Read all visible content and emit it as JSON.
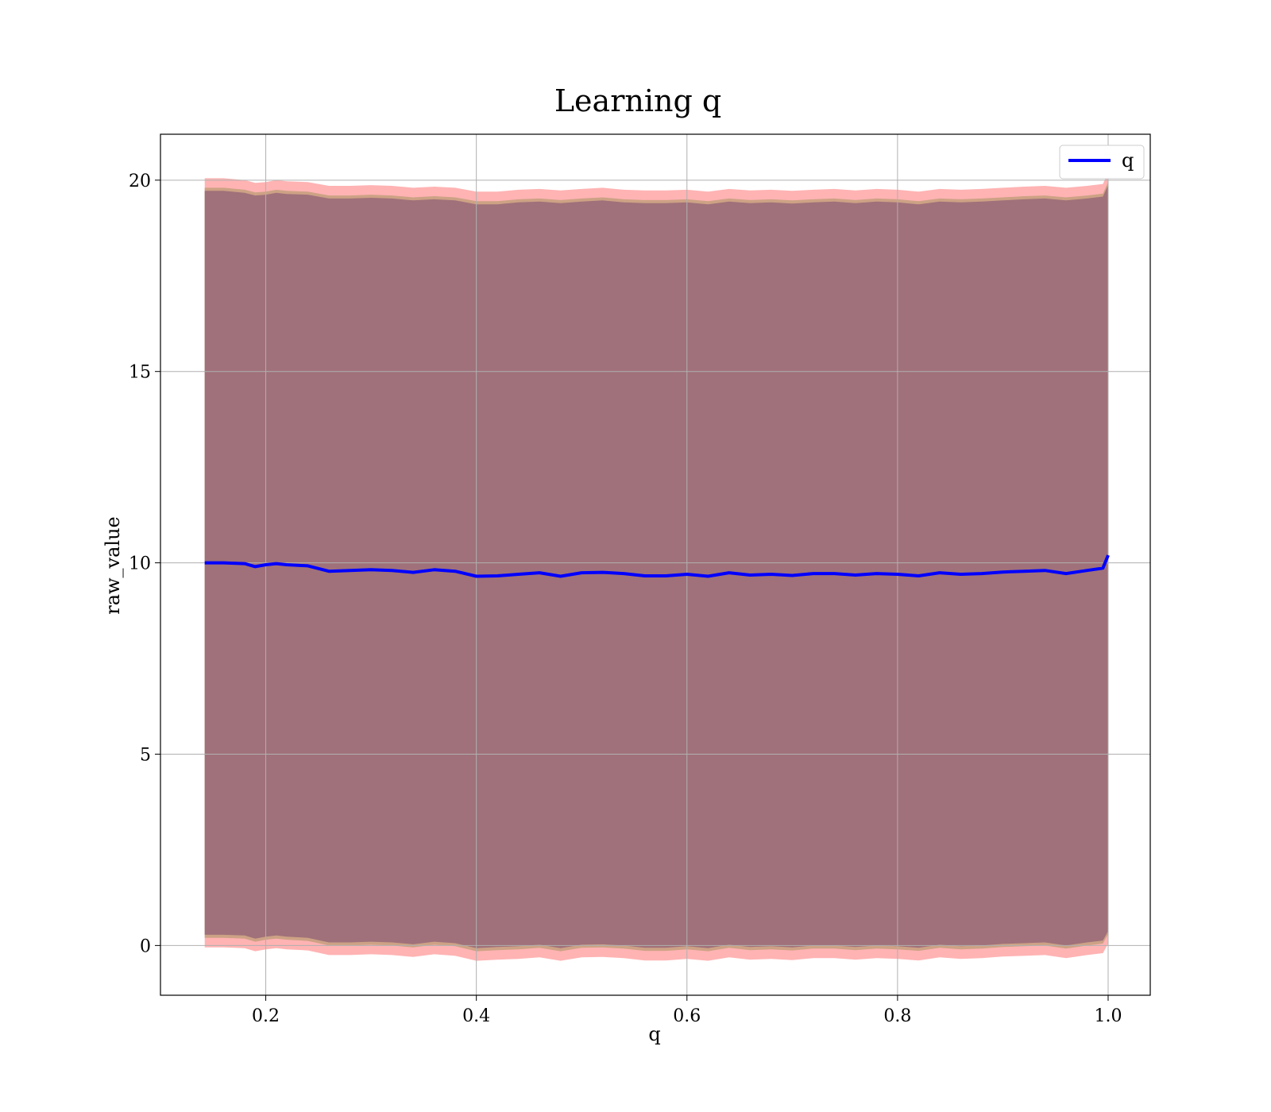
{
  "chart_data": {
    "type": "line",
    "title": "Learning q",
    "xlabel": "q",
    "ylabel": "raw_value",
    "xlim": [
      0.1,
      1.04
    ],
    "ylim": [
      -1.3,
      21.2
    ],
    "xticks": [
      0.2,
      0.4,
      0.6,
      0.8,
      1.0
    ],
    "xtick_labels": [
      "0.2",
      "0.4",
      "0.6",
      "0.8",
      "1.0"
    ],
    "yticks": [
      0,
      5,
      10,
      15,
      20
    ],
    "ytick_labels": [
      "0",
      "5",
      "10",
      "15",
      "20"
    ],
    "grid": true,
    "legend": {
      "position": "top-right",
      "entries": [
        "q"
      ]
    },
    "colors": {
      "line": "#0000ff",
      "band_outer": "#ff9999",
      "band_mid": "#c8a080",
      "band_inner": "#a0717a"
    },
    "series": [
      {
        "name": "q",
        "x": [
          0.142,
          0.16,
          0.18,
          0.19,
          0.2,
          0.21,
          0.22,
          0.24,
          0.26,
          0.28,
          0.3,
          0.32,
          0.34,
          0.36,
          0.38,
          0.4,
          0.42,
          0.44,
          0.46,
          0.48,
          0.5,
          0.52,
          0.54,
          0.56,
          0.58,
          0.6,
          0.62,
          0.64,
          0.66,
          0.68,
          0.7,
          0.72,
          0.74,
          0.76,
          0.78,
          0.8,
          0.82,
          0.84,
          0.86,
          0.88,
          0.9,
          0.92,
          0.94,
          0.96,
          0.98,
          0.995,
          1.0
        ],
        "y": [
          10.0,
          10.0,
          9.98,
          9.9,
          9.95,
          9.98,
          9.95,
          9.92,
          9.78,
          9.8,
          9.82,
          9.8,
          9.75,
          9.82,
          9.78,
          9.65,
          9.66,
          9.7,
          9.74,
          9.65,
          9.74,
          9.75,
          9.72,
          9.66,
          9.66,
          9.7,
          9.65,
          9.74,
          9.68,
          9.7,
          9.67,
          9.72,
          9.72,
          9.68,
          9.72,
          9.7,
          9.66,
          9.74,
          9.7,
          9.72,
          9.76,
          9.78,
          9.8,
          9.72,
          9.8,
          9.86,
          10.2
        ],
        "band_upper": [
          19.8,
          19.8,
          19.75,
          19.68,
          19.7,
          19.75,
          19.72,
          19.7,
          19.6,
          19.6,
          19.62,
          19.6,
          19.55,
          19.58,
          19.55,
          19.45,
          19.45,
          19.5,
          19.52,
          19.48,
          19.52,
          19.55,
          19.5,
          19.48,
          19.48,
          19.5,
          19.45,
          19.52,
          19.48,
          19.5,
          19.47,
          19.5,
          19.52,
          19.48,
          19.52,
          19.5,
          19.45,
          19.52,
          19.5,
          19.52,
          19.55,
          19.58,
          19.6,
          19.55,
          19.6,
          19.65,
          19.95
        ],
        "band_lower": [
          0.2,
          0.2,
          0.18,
          0.1,
          0.15,
          0.18,
          0.15,
          0.12,
          0.0,
          0.0,
          0.02,
          0.0,
          -0.05,
          0.02,
          -0.02,
          -0.15,
          -0.12,
          -0.1,
          -0.06,
          -0.15,
          -0.06,
          -0.05,
          -0.08,
          -0.14,
          -0.14,
          -0.1,
          -0.15,
          -0.06,
          -0.12,
          -0.1,
          -0.13,
          -0.08,
          -0.08,
          -0.12,
          -0.08,
          -0.1,
          -0.14,
          -0.06,
          -0.1,
          -0.08,
          -0.04,
          -0.02,
          0.0,
          -0.08,
          0.0,
          0.05,
          0.3
        ]
      }
    ]
  }
}
